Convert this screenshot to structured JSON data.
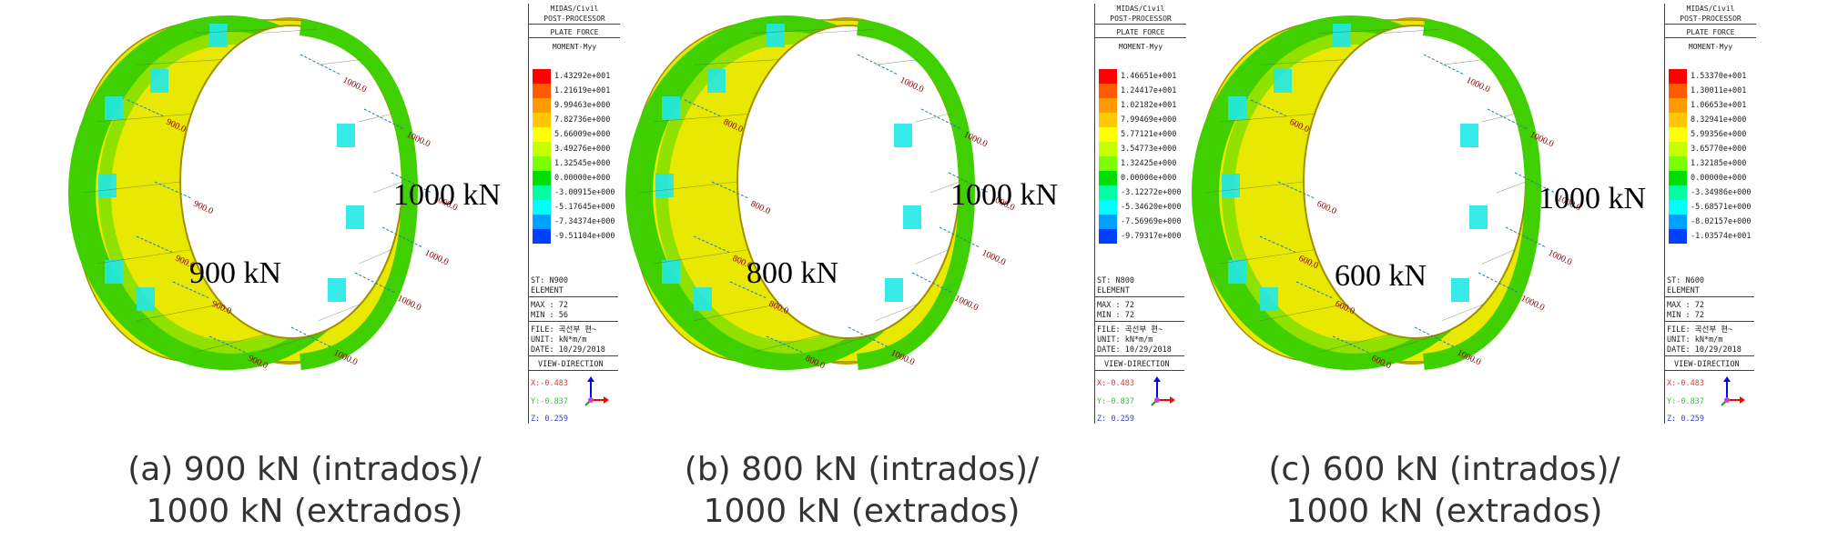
{
  "panels": [
    {
      "inner_label": "900 kN",
      "outer_label": "1000 kN",
      "arrow_inner": "900.0",
      "arrow_outer": "1000.0",
      "caption_line1": "(a) 900 kN (intrados)/",
      "caption_line2": "1000 kN (extrados)",
      "legend": {
        "app": "MIDAS/Civil",
        "module": "POST-PROCESSOR",
        "result": "PLATE FORCE",
        "component": "MOMENT-Myy",
        "values": [
          "1.43292e+001",
          "1.21619e+001",
          "9.99463e+000",
          "7.82736e+000",
          "5.66009e+000",
          "3.49276e+000",
          "1.32545e+000",
          "0.00000e+000",
          "-3.00915e+000",
          "-5.17645e+000",
          "-7.34374e+000",
          "-9.51104e+000"
        ],
        "st": "ST: N900",
        "element": "ELEMENT",
        "max": "MAX : 72",
        "min": "MIN : 56",
        "file": "FILE: 곡선부 편~",
        "unit": "UNIT: kN*m/m",
        "date": "DATE: 10/29/2018",
        "view": "VIEW-DIRECTION",
        "vx": "X:-0.483",
        "vy": "Y:-0.837",
        "vz": "Z: 0.259"
      }
    },
    {
      "inner_label": "800 kN",
      "outer_label": "1000 kN",
      "arrow_inner": "800.0",
      "arrow_outer": "1000.0",
      "caption_line1": "(b) 800 kN (intrados)/",
      "caption_line2": "1000 kN (extrados)",
      "legend": {
        "app": "MIDAS/Civil",
        "module": "POST-PROCESSOR",
        "result": "PLATE FORCE",
        "component": "MOMENT-Myy",
        "values": [
          "1.46651e+001",
          "1.24417e+001",
          "1.02182e+001",
          "7.99469e+000",
          "5.77121e+000",
          "3.54773e+000",
          "1.32425e+000",
          "0.00000e+000",
          "-3.12272e+000",
          "-5.34620e+000",
          "-7.56969e+000",
          "-9.79317e+000"
        ],
        "st": "ST: N800",
        "element": "ELEMENT",
        "max": "MAX : 72",
        "min": "MIN : 72",
        "file": "FILE: 곡선부 편~",
        "unit": "UNIT: kN*m/m",
        "date": "DATE: 10/29/2018",
        "view": "VIEW-DIRECTION",
        "vx": "X:-0.483",
        "vy": "Y:-0.837",
        "vz": "Z: 0.259"
      }
    },
    {
      "inner_label": "600 kN",
      "outer_label": "1000 kN",
      "arrow_inner": "600.0",
      "arrow_outer": "1000.0",
      "caption_line1": "(c) 600 kN (intrados)/",
      "caption_line2": "1000 kN (extrados)",
      "legend": {
        "app": "MIDAS/Civil",
        "module": "POST-PROCESSOR",
        "result": "PLATE FORCE",
        "component": "MOMENT-Myy",
        "values": [
          "1.53370e+001",
          "1.30011e+001",
          "1.06653e+001",
          "8.32941e+000",
          "5.99356e+000",
          "3.65770e+000",
          "1.32185e+000",
          "0.00000e+000",
          "-3.34986e+000",
          "-5.68571e+000",
          "-8.02157e+000",
          "-1.03574e+001"
        ],
        "st": "ST: N600",
        "element": "ELEMENT",
        "max": "MAX : 72",
        "min": "MIN : 72",
        "file": "FILE: 곡선부 편~",
        "unit": "UNIT: kN*m/m",
        "date": "DATE: 10/29/2018",
        "view": "VIEW-DIRECTION",
        "vx": "X:-0.483",
        "vy": "Y:-0.837",
        "vz": "Z: 0.259"
      }
    }
  ],
  "colors": {
    "scale": [
      "#ff0000",
      "#ff5a00",
      "#ff9a00",
      "#ffc800",
      "#ffff00",
      "#c8ff00",
      "#7cff00",
      "#00e000",
      "#00ffa0",
      "#00ffff",
      "#00a0ff",
      "#0040ff"
    ],
    "ring_yellow": "#e8e800",
    "ring_green": "#40d000",
    "ring_cyan": "#20e8e8",
    "ring_inner": "#90e000",
    "arrow": "#2a7aa0",
    "arrow_text": "#8b0000"
  }
}
